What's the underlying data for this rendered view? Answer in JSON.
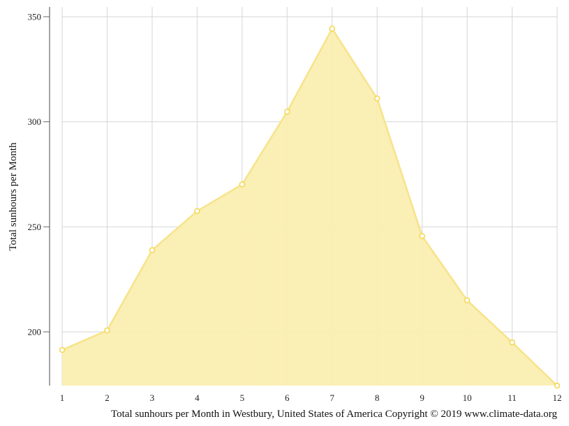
{
  "chart_data": {
    "type": "area",
    "title": "",
    "xlabel": "Total sunhours per Month in Westbury, United States of America Copyright © 2019 www.climate-data.org",
    "ylabel": "Total sunhours per Month",
    "categories": [
      "1",
      "2",
      "3",
      "4",
      "5",
      "6",
      "7",
      "8",
      "9",
      "10",
      "11",
      "12"
    ],
    "x": [
      1,
      2,
      3,
      4,
      5,
      6,
      7,
      8,
      9,
      10,
      11,
      12
    ],
    "series": [
      {
        "name": "Total sunhours per Month",
        "values": [
          191.4,
          200.7,
          238.9,
          257.5,
          270.2,
          304.8,
          344.3,
          311.1,
          245.6,
          215.0,
          195.0,
          174.4
        ],
        "color": "#f7e38a",
        "fill_color": "#faeeb0",
        "marker_color": "#f5d54a"
      }
    ],
    "ylim": [
      174.4,
      355
    ],
    "yticks": [
      200,
      250,
      300,
      350
    ],
    "xticks": [
      1,
      2,
      3,
      4,
      5,
      6,
      7,
      8,
      9,
      10,
      11,
      12
    ],
    "grid": true,
    "legend": "none"
  },
  "colors": {
    "grid": "#d6d6d6",
    "axis": "#666666",
    "line": "#f7e38a",
    "fill": "#faeeb0",
    "marker": "#f5d54a"
  }
}
